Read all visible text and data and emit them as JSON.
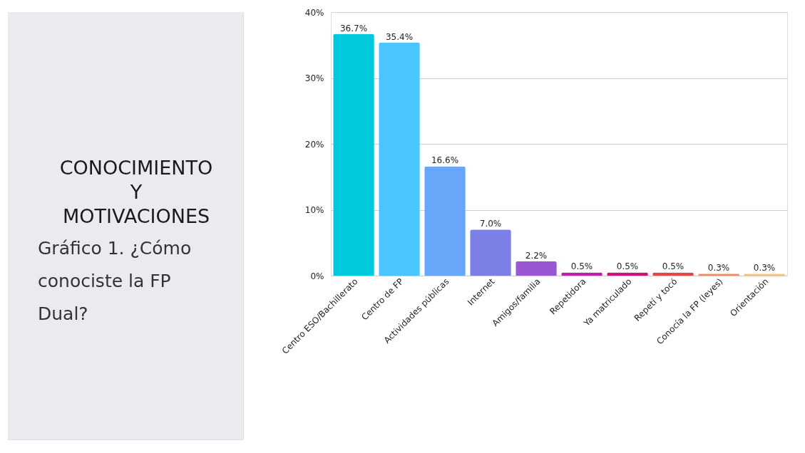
{
  "chart_data": {
    "type": "bar",
    "title": "CONOCIMIENTO Y MOTIVACIONES",
    "subtitle": "Gráfico 1. ¿Cómo conociste la FP Dual?",
    "categories": [
      "Centro ESO/Bachillerato",
      "Centro de FP",
      "Actividades públicas",
      "Internet",
      "Amigos/familia",
      "Repetidora",
      "Ya matriculado",
      "Repetí y tocó",
      "Conocía la FP (leyes)",
      "Orientación"
    ],
    "values": [
      36.7,
      35.4,
      16.6,
      7.0,
      2.2,
      0.5,
      0.5,
      0.5,
      0.3,
      0.3
    ],
    "value_labels": [
      "36.7%",
      "35.4%",
      "16.6%",
      "7.0%",
      "2.2%",
      "0.5%",
      "0.5%",
      "0.5%",
      "0.3%",
      "0.3%"
    ],
    "colors": [
      "#00c9dc",
      "#4bc5fe",
      "#67a6f8",
      "#7c80e6",
      "#9a57d2",
      "#bf1fa8",
      "#cb117a",
      "#e04848",
      "#f08a62",
      "#f6c17c"
    ],
    "ylim": [
      0,
      40
    ],
    "yticks": [
      {
        "value": 0,
        "label": "0%"
      },
      {
        "value": 10,
        "label": "10%"
      },
      {
        "value": 20,
        "label": "20%"
      },
      {
        "value": 30,
        "label": "30%"
      },
      {
        "value": 40,
        "label": "40%"
      }
    ],
    "grid": "y"
  }
}
